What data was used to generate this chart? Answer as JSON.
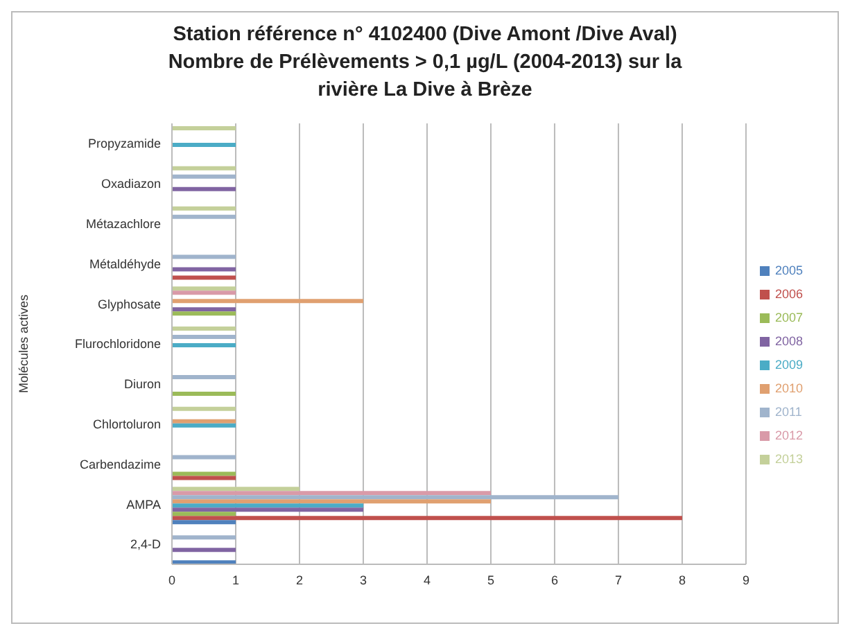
{
  "chart_data": {
    "type": "bar",
    "orientation": "horizontal",
    "title": "Station référence n° 4102400 (Dive Amont /Dive Aval) Nombre de Prélèvements > 0,1 µg/L (2004-2013) sur la rivière La Dive à Brèze",
    "ylabel": "Molécules actives",
    "categories": [
      "Propyzamide",
      "Oxadiazon",
      "Métazachlore",
      "Métaldéhyde",
      "Glyphosate",
      "Flurochloridone",
      "Diuron",
      "Chlortoluron",
      "Carbendazime",
      "AMPA",
      "2,4-D"
    ],
    "series": [
      {
        "name": "2013",
        "color": "#c4d09a",
        "values": [
          1,
          1,
          1,
          0,
          1,
          1,
          0,
          1,
          0,
          2,
          0
        ]
      },
      {
        "name": "2012",
        "color": "#d99aa8",
        "values": [
          0,
          0,
          0,
          0,
          1,
          0,
          0,
          0,
          0,
          5,
          0
        ]
      },
      {
        "name": "2011",
        "color": "#a0b4cc",
        "values": [
          0,
          1,
          1,
          1,
          0,
          1,
          1,
          0,
          1,
          7,
          1
        ]
      },
      {
        "name": "2010",
        "color": "#e0a070",
        "values": [
          0,
          0,
          0,
          0,
          3,
          0,
          0,
          1,
          0,
          5,
          0
        ]
      },
      {
        "name": "2009",
        "color": "#4bacc6",
        "values": [
          1,
          0,
          0,
          0,
          0,
          1,
          0,
          1,
          0,
          3,
          0
        ]
      },
      {
        "name": "2008",
        "color": "#8064a2",
        "values": [
          0,
          1,
          0,
          1,
          1,
          0,
          0,
          0,
          0,
          3,
          1
        ]
      },
      {
        "name": "2007",
        "color": "#9bbb59",
        "values": [
          0,
          0,
          0,
          0,
          1,
          0,
          1,
          0,
          1,
          1,
          0
        ]
      },
      {
        "name": "2006",
        "color": "#c0504d",
        "values": [
          0,
          0,
          0,
          1,
          0,
          0,
          0,
          0,
          1,
          8,
          0
        ]
      },
      {
        "name": "2005",
        "color": "#4f81bd",
        "values": [
          0,
          0,
          0,
          0,
          0,
          0,
          0,
          0,
          0,
          1,
          1
        ]
      }
    ],
    "xlim": [
      0,
      9
    ],
    "xticks": [
      0,
      1,
      2,
      3,
      4,
      5,
      6,
      7,
      8,
      9
    ],
    "grid": "x",
    "legend": "right"
  }
}
